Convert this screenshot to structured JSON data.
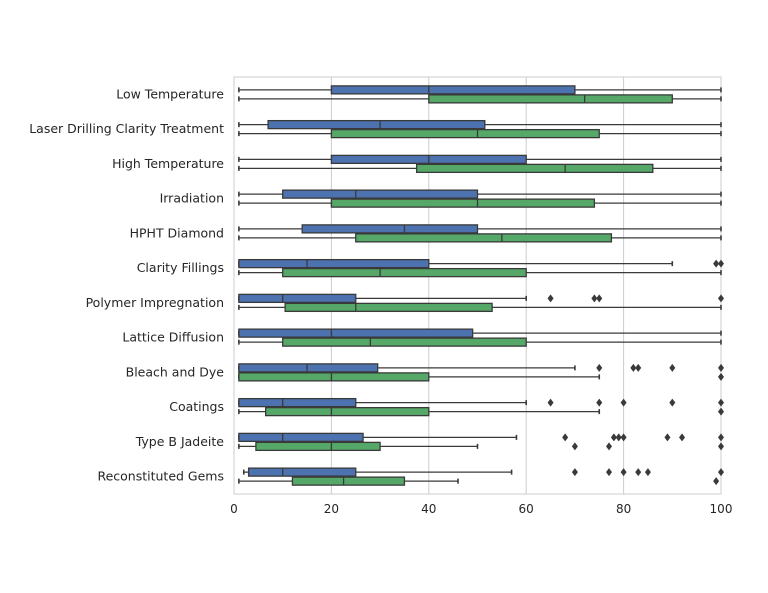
{
  "chart_data": {
    "type": "boxplot",
    "orientation": "horizontal",
    "title": "",
    "xlabel": "",
    "ylabel": "",
    "xlim": [
      0,
      100
    ],
    "xticks": [
      0,
      20,
      40,
      60,
      80,
      100
    ],
    "grid": true,
    "legend": "none",
    "colors": {
      "series1": "#4c72b0",
      "series2": "#55a868",
      "line": "#3a3a3a",
      "grid": "#cccccc",
      "frame": "#cccccc"
    },
    "categories": [
      "Low Temperature",
      "Laser Drilling Clarity Treatment",
      "High Temperature",
      "Irradiation",
      "HPHT Diamond",
      "Clarity Fillings",
      "Polymer Impregnation",
      "Lattice Diffusion",
      "Bleach and Dye",
      "Coatings",
      "Type B Jadeite",
      "Reconstituted Gems"
    ],
    "series": [
      {
        "name": "series-1",
        "boxes": [
          {
            "whislo": 1,
            "q1": 20,
            "med": 40,
            "q3": 70,
            "whishi": 100,
            "fliers": []
          },
          {
            "whislo": 1,
            "q1": 7,
            "med": 30,
            "q3": 51.5,
            "whishi": 100,
            "fliers": []
          },
          {
            "whislo": 1,
            "q1": 20,
            "med": 40,
            "q3": 60,
            "whishi": 100,
            "fliers": []
          },
          {
            "whislo": 1,
            "q1": 10,
            "med": 25,
            "q3": 50,
            "whishi": 100,
            "fliers": []
          },
          {
            "whislo": 1,
            "q1": 14,
            "med": 35,
            "q3": 50,
            "whishi": 100,
            "fliers": []
          },
          {
            "whislo": 1,
            "q1": 1,
            "med": 15,
            "q3": 40,
            "whishi": 90,
            "fliers": [
              99,
              100
            ]
          },
          {
            "whislo": 1,
            "q1": 1,
            "med": 10,
            "q3": 25,
            "whishi": 60,
            "fliers": [
              65,
              74,
              75,
              100
            ]
          },
          {
            "whislo": 1,
            "q1": 1,
            "med": 20,
            "q3": 49,
            "whishi": 100,
            "fliers": []
          },
          {
            "whislo": 1,
            "q1": 1,
            "med": 15,
            "q3": 29.5,
            "whishi": 70,
            "fliers": [
              75,
              82,
              83,
              90,
              100
            ]
          },
          {
            "whislo": 1,
            "q1": 1,
            "med": 10,
            "q3": 25,
            "whishi": 60,
            "fliers": [
              65,
              75,
              80,
              90,
              100
            ]
          },
          {
            "whislo": 1,
            "q1": 1,
            "med": 10,
            "q3": 26.5,
            "whishi": 58,
            "fliers": [
              68,
              78,
              79,
              80,
              89,
              92,
              100
            ]
          },
          {
            "whislo": 2,
            "q1": 3,
            "med": 10,
            "q3": 25,
            "whishi": 57,
            "fliers": [
              70,
              77,
              80,
              83,
              85,
              100
            ]
          }
        ]
      },
      {
        "name": "series-2",
        "boxes": [
          {
            "whislo": 1,
            "q1": 40,
            "med": 72,
            "q3": 90,
            "whishi": 100,
            "fliers": []
          },
          {
            "whislo": 1,
            "q1": 20,
            "med": 50,
            "q3": 75,
            "whishi": 100,
            "fliers": []
          },
          {
            "whislo": 1,
            "q1": 37.5,
            "med": 68,
            "q3": 86,
            "whishi": 100,
            "fliers": []
          },
          {
            "whislo": 1,
            "q1": 20,
            "med": 50,
            "q3": 74,
            "whishi": 100,
            "fliers": []
          },
          {
            "whislo": 1,
            "q1": 25,
            "med": 55,
            "q3": 77.5,
            "whishi": 100,
            "fliers": []
          },
          {
            "whislo": 1,
            "q1": 10,
            "med": 30,
            "q3": 60,
            "whishi": 100,
            "fliers": []
          },
          {
            "whislo": 1,
            "q1": 10.5,
            "med": 25,
            "q3": 53,
            "whishi": 100,
            "fliers": []
          },
          {
            "whislo": 1,
            "q1": 10,
            "med": 28,
            "q3": 60,
            "whishi": 100,
            "fliers": []
          },
          {
            "whislo": 1,
            "q1": 1,
            "med": 20,
            "q3": 40,
            "whishi": 75,
            "fliers": [
              100
            ]
          },
          {
            "whislo": 1,
            "q1": 6.5,
            "med": 20,
            "q3": 40,
            "whishi": 75,
            "fliers": [
              100
            ]
          },
          {
            "whislo": 1,
            "q1": 4.5,
            "med": 20,
            "q3": 30,
            "whishi": 50,
            "fliers": [
              70,
              77,
              100
            ]
          },
          {
            "whislo": 1,
            "q1": 12,
            "med": 22.5,
            "q3": 35,
            "whishi": 46,
            "fliers": [
              99
            ]
          }
        ]
      }
    ]
  }
}
